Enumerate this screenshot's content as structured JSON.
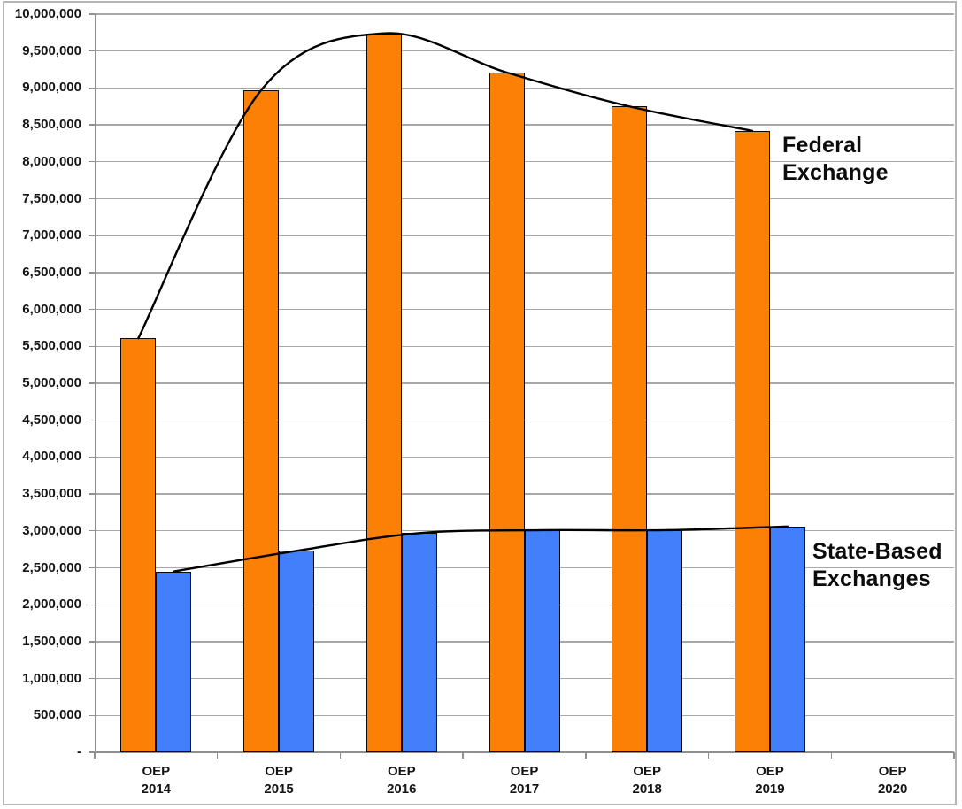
{
  "chart_data": {
    "type": "bar",
    "title": "",
    "categories": [
      {
        "line1": "OEP",
        "line2": "2014"
      },
      {
        "line1": "OEP",
        "line2": "2015"
      },
      {
        "line1": "OEP",
        "line2": "2016"
      },
      {
        "line1": "OEP",
        "line2": "2017"
      },
      {
        "line1": "OEP",
        "line2": "2018"
      },
      {
        "line1": "OEP",
        "line2": "2019"
      },
      {
        "line1": "OEP",
        "line2": "2020"
      }
    ],
    "series": [
      {
        "name": "Federal Exchange",
        "label_lines": [
          "Federal",
          "Exchange"
        ],
        "color": "#fb8005",
        "trend_line": true,
        "values": [
          5610000,
          8970000,
          9740000,
          9210000,
          8750000,
          8420000,
          null
        ]
      },
      {
        "name": "State-Based Exchanges",
        "label_lines": [
          "State-Based",
          "Exchanges"
        ],
        "color": "#4280fb",
        "trend_line": true,
        "values": [
          2450000,
          2730000,
          2970000,
          3010000,
          3010000,
          3060000,
          null
        ]
      }
    ],
    "y_axis": {
      "min": 0,
      "max": 10000000,
      "step": 500000,
      "tick_labels": [
        "10,000,000",
        "9,500,000",
        "9,000,000",
        "8,500,000",
        "8,000,000",
        "7,500,000",
        "7,000,000",
        "6,500,000",
        "6,000,000",
        "5,500,000",
        "5,000,000",
        "4,500,000",
        "4,000,000",
        "3,500,000",
        "3,000,000",
        "2,500,000",
        "2,000,000",
        "1,500,000",
        "1,000,000",
        "500,000",
        "-"
      ]
    },
    "x_axis": {
      "label": ""
    },
    "legend": "none (direct series labels on chart)",
    "grid": "horizontal major gridlines every 500,000"
  },
  "colors": {
    "gridline": "#a8a8a8",
    "axis": "#8f8f8f",
    "trend_line": "#000000",
    "bar_border": "#0a0a0a",
    "frame_border": "#b4b4bc",
    "background": "#ffffff",
    "text": "#141414"
  }
}
